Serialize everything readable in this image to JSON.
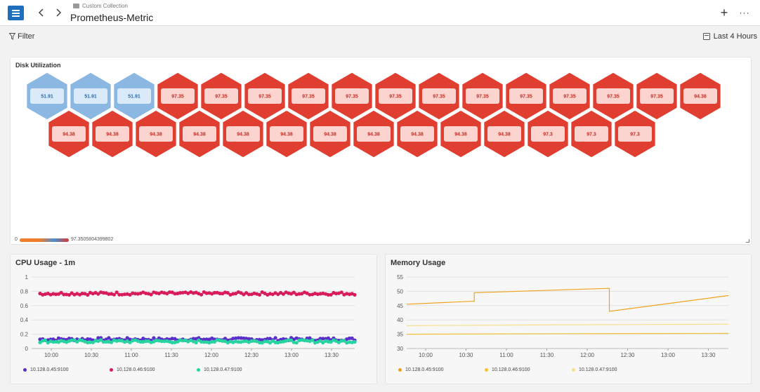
{
  "header": {
    "breadcrumb": "Custom Collection",
    "title": "Prometheus-Metric",
    "add_label": "+",
    "more_label": "···"
  },
  "toolbar": {
    "filter_label": "Filter",
    "time_range_label": "Last 4 Hours"
  },
  "disk": {
    "title": "Disk Utilization",
    "scale_min": "0",
    "scale_max": "97.3505804399802",
    "row1": [
      "51.91",
      "51.91",
      "51.91",
      "97.35",
      "97.35",
      "97.35",
      "97.35",
      "97.35",
      "97.35",
      "97.35",
      "97.35",
      "97.35",
      "97.35",
      "97.35",
      "97.35",
      "94.38"
    ],
    "row2": [
      "94.38",
      "94.38",
      "94.38",
      "94.38",
      "94.38",
      "94.38",
      "94.38",
      "94.38",
      "94.38",
      "94.38",
      "94.38",
      "97.3",
      "97.3",
      "97.3"
    ],
    "colors": {
      "low": "#8bb7e3",
      "high": "#e03e31",
      "low_tile": "#dbeaf8",
      "high_tile": "#fbd3cf",
      "low_text": "#2c6ab0",
      "high_text": "#c42b20"
    }
  },
  "cpu": {
    "title": "CPU Usage - 1m",
    "chart_data": {
      "type": "scatter",
      "x_ticks": [
        "10:00",
        "10:30",
        "11:00",
        "11:30",
        "12:00",
        "12:30",
        "13:00",
        "13:30"
      ],
      "y_ticks": [
        "0",
        "0.2",
        "0.4",
        "0.6",
        "0.8",
        "1"
      ],
      "ylim": [
        0,
        1
      ],
      "series": [
        {
          "name": "10.128.0.45:9100",
          "color": "#5b2fc9",
          "level": 0.13
        },
        {
          "name": "10.128.0.46:9100",
          "color": "#d81b5c",
          "level": 0.77
        },
        {
          "name": "10.128.0.47:9100",
          "color": "#27d3a0",
          "level": 0.1
        }
      ]
    }
  },
  "memory": {
    "title": "Memory Usage",
    "chart_data": {
      "type": "line",
      "x_ticks": [
        "10:00",
        "10:30",
        "11:00",
        "11:30",
        "12:00",
        "12:30",
        "13:00",
        "13:30"
      ],
      "y_ticks": [
        "30",
        "35",
        "40",
        "45",
        "50",
        "55"
      ],
      "ylim": [
        30,
        55
      ],
      "series": [
        {
          "name": "10.128.0.45:9100",
          "color": "#f0a21a",
          "x": [
            0,
            0.2,
            0.21,
            0.62,
            0.63,
            1
          ],
          "y": [
            45.5,
            46.5,
            49.5,
            51,
            43,
            48.5
          ]
        },
        {
          "name": "10.128.0.46:9100",
          "color": "#f3c234",
          "x": [
            0,
            0.5,
            1
          ],
          "y": [
            35,
            35.2,
            35.3
          ]
        },
        {
          "name": "10.128.0.47:9100",
          "color": "#f7e08c",
          "x": [
            0,
            0.5,
            1
          ],
          "y": [
            38,
            38.3,
            38.5
          ]
        }
      ]
    }
  }
}
